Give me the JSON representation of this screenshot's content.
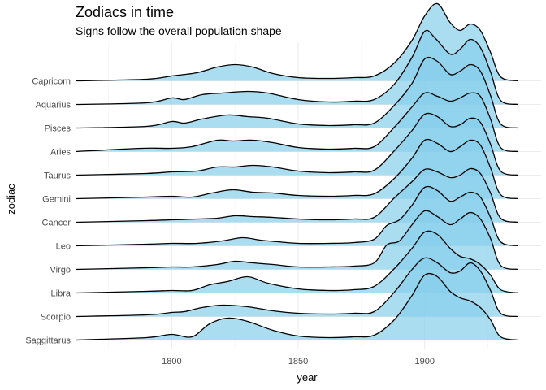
{
  "chart_data": {
    "type": "ridgeline",
    "title": "Zodiacs in time",
    "subtitle": "Signs follow the overall population shape",
    "xlabel": "year",
    "ylabel": "zodiac",
    "xlim": [
      1760,
      1938
    ],
    "x_ticks": [
      1800,
      1850,
      1900
    ],
    "x_tick_labels": [
      "1800",
      "1850",
      "1900"
    ],
    "x_minor_ticks": [
      1775,
      1825,
      1875,
      1925
    ],
    "grid": true,
    "fill_color": "#87CEEB",
    "line_color": "#000000",
    "categories": [
      "Capricorn",
      "Aquarius",
      "Pisces",
      "Aries",
      "Taurus",
      "Gemini",
      "Cancer",
      "Leo",
      "Virgo",
      "Libra",
      "Scorpio",
      "Saggittarus"
    ],
    "series": [
      {
        "name": "Capricorn",
        "x": [
          1762,
          1790,
          1800,
          1810,
          1818,
          1825,
          1832,
          1840,
          1850,
          1862,
          1872,
          1880,
          1888,
          1895,
          1900,
          1905,
          1910,
          1914,
          1918,
          1922,
          1926,
          1930,
          1937
        ],
        "y": [
          0,
          0.02,
          0.06,
          0.1,
          0.17,
          0.2,
          0.17,
          0.09,
          0.04,
          0.03,
          0.04,
          0.06,
          0.22,
          0.5,
          0.8,
          0.95,
          0.72,
          0.62,
          0.7,
          0.62,
          0.35,
          0.05,
          0
        ]
      },
      {
        "name": "Aquarius",
        "x": [
          1762,
          1790,
          1800,
          1805,
          1812,
          1820,
          1830,
          1838,
          1850,
          1862,
          1872,
          1880,
          1888,
          1895,
          1900,
          1904,
          1910,
          1914,
          1918,
          1922,
          1926,
          1930,
          1937
        ],
        "y": [
          0,
          0.02,
          0.08,
          0.06,
          0.12,
          0.14,
          0.16,
          0.14,
          0.06,
          0.03,
          0.04,
          0.06,
          0.25,
          0.58,
          0.9,
          0.82,
          0.62,
          0.68,
          0.8,
          0.7,
          0.4,
          0.05,
          0
        ]
      },
      {
        "name": "Pisces",
        "x": [
          1762,
          1790,
          1800,
          1805,
          1812,
          1822,
          1830,
          1838,
          1850,
          1862,
          1872,
          1880,
          1888,
          1895,
          1900,
          1905,
          1910,
          1914,
          1918,
          1922,
          1926,
          1930,
          1937
        ],
        "y": [
          0,
          0.02,
          0.08,
          0.06,
          0.11,
          0.16,
          0.14,
          0.12,
          0.05,
          0.03,
          0.04,
          0.06,
          0.28,
          0.55,
          0.85,
          0.82,
          0.66,
          0.7,
          0.78,
          0.7,
          0.4,
          0.05,
          0
        ]
      },
      {
        "name": "Aries",
        "x": [
          1762,
          1788,
          1800,
          1808,
          1818,
          1824,
          1832,
          1840,
          1850,
          1862,
          1872,
          1880,
          1888,
          1895,
          1900,
          1905,
          1910,
          1914,
          1918,
          1922,
          1926,
          1930,
          1937
        ],
        "y": [
          0,
          0.04,
          0.04,
          0.06,
          0.14,
          0.13,
          0.14,
          0.11,
          0.05,
          0.03,
          0.04,
          0.06,
          0.3,
          0.55,
          0.72,
          0.68,
          0.62,
          0.66,
          0.72,
          0.68,
          0.4,
          0.05,
          0
        ]
      },
      {
        "name": "Taurus",
        "x": [
          1762,
          1790,
          1800,
          1810,
          1818,
          1825,
          1832,
          1840,
          1850,
          1862,
          1872,
          1880,
          1888,
          1895,
          1900,
          1905,
          1910,
          1914,
          1918,
          1922,
          1926,
          1930,
          1937
        ],
        "y": [
          0,
          0.02,
          0.04,
          0.05,
          0.1,
          0.1,
          0.12,
          0.1,
          0.05,
          0.03,
          0.04,
          0.06,
          0.3,
          0.55,
          0.75,
          0.72,
          0.6,
          0.62,
          0.7,
          0.65,
          0.38,
          0.05,
          0
        ]
      },
      {
        "name": "Gemini",
        "x": [
          1762,
          1790,
          1800,
          1808,
          1816,
          1824,
          1832,
          1840,
          1850,
          1862,
          1872,
          1880,
          1888,
          1895,
          1900,
          1905,
          1910,
          1914,
          1918,
          1922,
          1926,
          1930,
          1937
        ],
        "y": [
          0,
          0.02,
          0.03,
          0.02,
          0.07,
          0.11,
          0.08,
          0.07,
          0.04,
          0.03,
          0.04,
          0.06,
          0.25,
          0.5,
          0.72,
          0.68,
          0.58,
          0.64,
          0.72,
          0.66,
          0.38,
          0.05,
          0
        ]
      },
      {
        "name": "Cancer",
        "x": [
          1762,
          1790,
          1800,
          1810,
          1818,
          1825,
          1832,
          1840,
          1850,
          1862,
          1872,
          1880,
          1888,
          1895,
          1900,
          1905,
          1910,
          1914,
          1918,
          1922,
          1926,
          1930,
          1937
        ],
        "y": [
          0,
          0.02,
          0.03,
          0.04,
          0.05,
          0.08,
          0.07,
          0.06,
          0.04,
          0.03,
          0.04,
          0.06,
          0.3,
          0.5,
          0.65,
          0.62,
          0.55,
          0.58,
          0.66,
          0.6,
          0.36,
          0.05,
          0
        ]
      },
      {
        "name": "Leo",
        "x": [
          1762,
          1790,
          1800,
          1810,
          1820,
          1828,
          1835,
          1842,
          1850,
          1862,
          1872,
          1880,
          1885,
          1890,
          1895,
          1900,
          1905,
          1910,
          1914,
          1918,
          1922,
          1926,
          1930,
          1937
        ],
        "y": [
          0,
          0.02,
          0.03,
          0.03,
          0.06,
          0.1,
          0.07,
          0.05,
          0.03,
          0.03,
          0.04,
          0.08,
          0.25,
          0.32,
          0.5,
          0.72,
          0.68,
          0.55,
          0.6,
          0.66,
          0.6,
          0.35,
          0.05,
          0
        ]
      },
      {
        "name": "Virgo",
        "x": [
          1762,
          1790,
          1800,
          1808,
          1818,
          1825,
          1832,
          1840,
          1850,
          1862,
          1872,
          1880,
          1885,
          1890,
          1895,
          1900,
          1905,
          1910,
          1914,
          1918,
          1922,
          1926,
          1930,
          1937
        ],
        "y": [
          0,
          0.02,
          0.03,
          0.03,
          0.06,
          0.1,
          0.08,
          0.06,
          0.03,
          0.03,
          0.04,
          0.08,
          0.3,
          0.35,
          0.55,
          0.72,
          0.65,
          0.55,
          0.62,
          0.7,
          0.62,
          0.38,
          0.05,
          0
        ]
      },
      {
        "name": "Libra",
        "x": [
          1762,
          1790,
          1800,
          1808,
          1815,
          1822,
          1830,
          1838,
          1850,
          1862,
          1872,
          1880,
          1888,
          1895,
          1900,
          1905,
          1910,
          1914,
          1918,
          1922,
          1926,
          1930,
          1937
        ],
        "y": [
          0,
          0.02,
          0.03,
          0.03,
          0.1,
          0.14,
          0.2,
          0.12,
          0.05,
          0.03,
          0.04,
          0.08,
          0.3,
          0.55,
          0.75,
          0.72,
          0.55,
          0.45,
          0.42,
          0.35,
          0.22,
          0.04,
          0
        ]
      },
      {
        "name": "Scorpio",
        "x": [
          1762,
          1790,
          1800,
          1805,
          1812,
          1820,
          1830,
          1840,
          1850,
          1862,
          1872,
          1880,
          1888,
          1895,
          1900,
          1905,
          1910,
          1914,
          1918,
          1922,
          1926,
          1930,
          1937
        ],
        "y": [
          0,
          0.02,
          0.05,
          0.06,
          0.11,
          0.14,
          0.12,
          0.07,
          0.04,
          0.03,
          0.04,
          0.06,
          0.3,
          0.58,
          0.72,
          0.66,
          0.54,
          0.56,
          0.66,
          0.56,
          0.32,
          0.04,
          0
        ]
      },
      {
        "name": "Saggittarus",
        "x": [
          1762,
          1790,
          1800,
          1808,
          1815,
          1822,
          1830,
          1840,
          1850,
          1862,
          1872,
          1880,
          1888,
          1895,
          1900,
          1905,
          1910,
          1914,
          1918,
          1922,
          1926,
          1930,
          1937
        ],
        "y": [
          0,
          0.03,
          0.07,
          0.04,
          0.2,
          0.27,
          0.23,
          0.12,
          0.05,
          0.03,
          0.04,
          0.06,
          0.25,
          0.55,
          0.8,
          0.78,
          0.6,
          0.52,
          0.48,
          0.4,
          0.25,
          0.04,
          0
        ]
      }
    ]
  }
}
